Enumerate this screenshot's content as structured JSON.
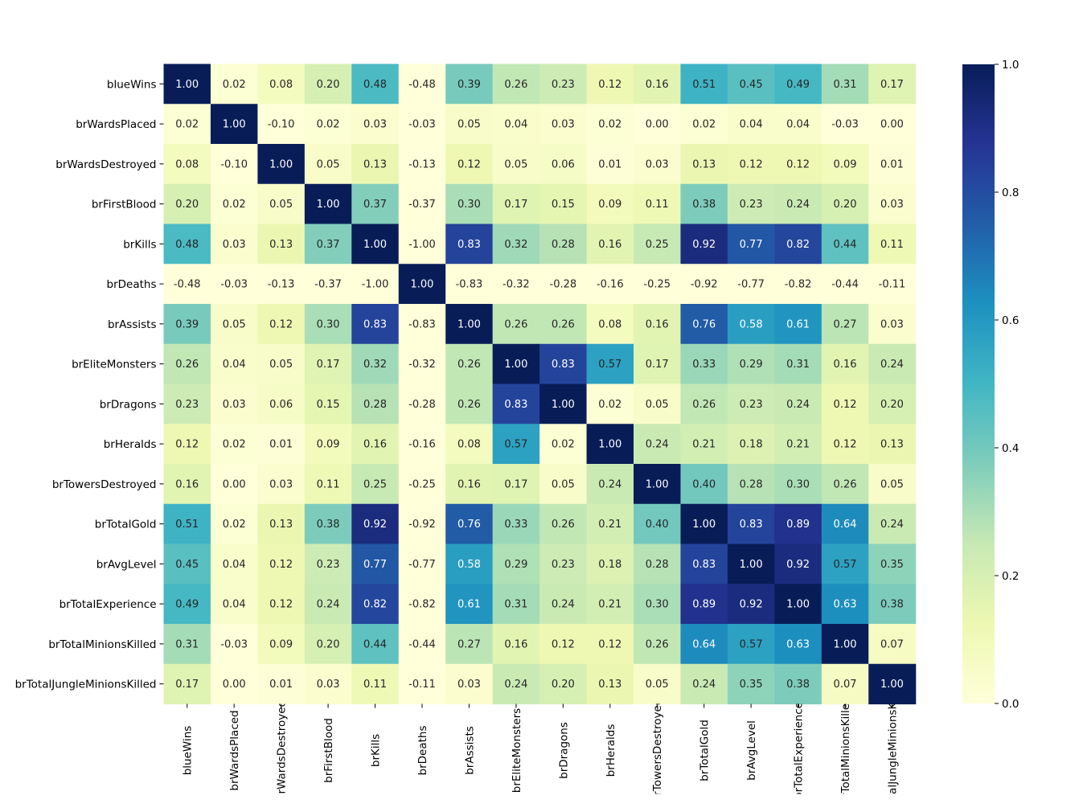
{
  "chart_data": {
    "type": "heatmap",
    "rows": [
      "blueWins",
      "brWardsPlaced",
      "brWardsDestroyed",
      "brFirstBlood",
      "brKills",
      "brDeaths",
      "brAssists",
      "brEliteMonsters",
      "brDragons",
      "brHeralds",
      "brTowersDestroyed",
      "brTotalGold",
      "brAvgLevel",
      "brTotalExperience",
      "brTotalMinionsKilled",
      "brTotalJungleMinionsKilled"
    ],
    "columns": [
      "blueWins",
      "brWardsPlaced",
      "brWardsDestroyed",
      "brFirstBlood",
      "brKills",
      "brDeaths",
      "brAssists",
      "brEliteMonsters",
      "brDragons",
      "brHeralds",
      "brTowersDestroyed",
      "brTotalGold",
      "brAvgLevel",
      "brTotalExperience",
      "brTotalMinionsKilled",
      "brTotalJungleMinionsKilled"
    ],
    "values": [
      [
        1.0,
        0.02,
        0.08,
        0.2,
        0.48,
        -0.48,
        0.39,
        0.26,
        0.23,
        0.12,
        0.16,
        0.51,
        0.45,
        0.49,
        0.31,
        0.17
      ],
      [
        0.02,
        1.0,
        -0.1,
        0.02,
        0.03,
        -0.03,
        0.05,
        0.04,
        0.03,
        0.02,
        0.0,
        0.02,
        0.04,
        0.04,
        -0.03,
        0.0
      ],
      [
        0.08,
        -0.1,
        1.0,
        0.05,
        0.13,
        -0.13,
        0.12,
        0.05,
        0.06,
        0.01,
        0.03,
        0.13,
        0.12,
        0.12,
        0.09,
        0.01
      ],
      [
        0.2,
        0.02,
        0.05,
        1.0,
        0.37,
        -0.37,
        0.3,
        0.17,
        0.15,
        0.09,
        0.11,
        0.38,
        0.23,
        0.24,
        0.2,
        0.03
      ],
      [
        0.48,
        0.03,
        0.13,
        0.37,
        1.0,
        -1.0,
        0.83,
        0.32,
        0.28,
        0.16,
        0.25,
        0.92,
        0.77,
        0.82,
        0.44,
        0.11
      ],
      [
        -0.48,
        -0.03,
        -0.13,
        -0.37,
        -1.0,
        1.0,
        -0.83,
        -0.32,
        -0.28,
        -0.16,
        -0.25,
        -0.92,
        -0.77,
        -0.82,
        -0.44,
        -0.11
      ],
      [
        0.39,
        0.05,
        0.12,
        0.3,
        0.83,
        -0.83,
        1.0,
        0.26,
        0.26,
        0.08,
        0.16,
        0.76,
        0.58,
        0.61,
        0.27,
        0.03
      ],
      [
        0.26,
        0.04,
        0.05,
        0.17,
        0.32,
        -0.32,
        0.26,
        1.0,
        0.83,
        0.57,
        0.17,
        0.33,
        0.29,
        0.31,
        0.16,
        0.24
      ],
      [
        0.23,
        0.03,
        0.06,
        0.15,
        0.28,
        -0.28,
        0.26,
        0.83,
        1.0,
        0.02,
        0.05,
        0.26,
        0.23,
        0.24,
        0.12,
        0.2
      ],
      [
        0.12,
        0.02,
        0.01,
        0.09,
        0.16,
        -0.16,
        0.08,
        0.57,
        0.02,
        1.0,
        0.24,
        0.21,
        0.18,
        0.21,
        0.12,
        0.13
      ],
      [
        0.16,
        0.0,
        0.03,
        0.11,
        0.25,
        -0.25,
        0.16,
        0.17,
        0.05,
        0.24,
        1.0,
        0.4,
        0.28,
        0.3,
        0.26,
        0.05
      ],
      [
        0.51,
        0.02,
        0.13,
        0.38,
        0.92,
        -0.92,
        0.76,
        0.33,
        0.26,
        0.21,
        0.4,
        1.0,
        0.83,
        0.89,
        0.64,
        0.24
      ],
      [
        0.45,
        0.04,
        0.12,
        0.23,
        0.77,
        -0.77,
        0.58,
        0.29,
        0.23,
        0.18,
        0.28,
        0.83,
        1.0,
        0.92,
        0.57,
        0.35
      ],
      [
        0.49,
        0.04,
        0.12,
        0.24,
        0.82,
        -0.82,
        0.61,
        0.31,
        0.24,
        0.21,
        0.3,
        0.89,
        0.92,
        1.0,
        0.63,
        0.38
      ],
      [
        0.31,
        -0.03,
        0.09,
        0.2,
        0.44,
        -0.44,
        0.27,
        0.16,
        0.12,
        0.12,
        0.26,
        0.64,
        0.57,
        0.63,
        1.0,
        0.07
      ],
      [
        0.17,
        0.0,
        0.01,
        0.03,
        0.11,
        -0.11,
        0.03,
        0.24,
        0.2,
        0.13,
        0.05,
        0.24,
        0.35,
        0.38,
        0.07,
        1.0
      ]
    ],
    "colorbar": {
      "min": 0.0,
      "max": 1.0,
      "ticks": [
        "0.0",
        "0.2",
        "0.4",
        "0.6",
        "0.8",
        "1.0"
      ]
    },
    "colormap": "YlGnBu",
    "colormap_stops": [
      "#ffffd9",
      "#edf8b1",
      "#c7e9b4",
      "#7fcdbb",
      "#41b6c4",
      "#1d91c0",
      "#225ea8",
      "#253494",
      "#081d58"
    ],
    "title": "",
    "xlabel": "",
    "ylabel": ""
  }
}
